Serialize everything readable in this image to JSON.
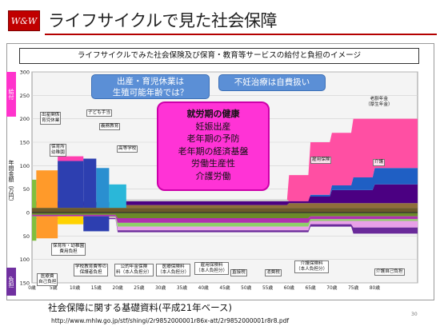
{
  "logo": {
    "text": "W&W"
  },
  "title": "ライフサイクルで見た社会保障",
  "subtitle": "ライフサイクルでみた社会保険及び保育・教育等サービスの給付と負担のイメージ",
  "axis": {
    "benefit": "給付",
    "unit": "年間金額（万円）",
    "burden": "負担"
  },
  "callouts": {
    "left": [
      "出産・育児休業は",
      "生殖可能年齢では？"
    ],
    "right": "不妊治療は自費扱い"
  },
  "pink_box": {
    "heading": "就労期の健康",
    "items": [
      "妊娠出産",
      "老年期の予防",
      "老年期の経済基盤",
      "労働生産性",
      "介護労働"
    ]
  },
  "labels_top": [
    "出産関係\n育児休業",
    "子ども手当",
    "義務教育",
    "保育所\n幼稚園",
    "高等学校",
    "雇用保険",
    "老齢年金\n（厚生年金）",
    "介護"
  ],
  "labels_bottom": [
    "保育所・幼稚園\n費用負担",
    "学校教育費等の\n保護者負担",
    "公的年金保険\n料（本人負担分）",
    "医療保険料\n（本人負担分）",
    "雇用保険料\n（本人負担分）",
    "直接税",
    "消費税",
    "介護保険料\n（本人負担分）",
    "医療費\n自己負担",
    "介護自己負担"
  ],
  "chart_data": {
    "type": "area",
    "x_ticks": [
      "0歳",
      "5歳",
      "10歳",
      "15歳",
      "20歳",
      "25歳",
      "30歳",
      "35歳",
      "40歳",
      "45歳",
      "50歳",
      "55歳",
      "60歳",
      "65歳",
      "70歳",
      "75歳",
      "80歳"
    ],
    "y_ticks": [
      300,
      250,
      200,
      150,
      100,
      50,
      0,
      -50,
      -100,
      -150
    ],
    "ylim": [
      -150,
      300
    ],
    "xlim": [
      0,
      90
    ],
    "colors": {
      "pension": "#ff4fa3",
      "care": "#1f5fc4",
      "medical": "#4b0082",
      "edu": "#2d3fb0",
      "daycare": "#ff9a2a",
      "employment": "#c9c9c9",
      "tax": "#8fcf6a",
      "green": "#7fbf3f",
      "olive": "#8a7a2a",
      "cyan": "#2ab7d9",
      "pink_tax": "#e93fd6",
      "purple_tax": "#6a2a9a"
    }
  },
  "footer": {
    "line1": "社会保障に関する基礎資料(平成21年ベース)",
    "line2": "http://www.mhlw.go.jp/stf/shingi/2r9852000001r86x-att/2r9852000001r8r8.pdf",
    "page": "30"
  }
}
